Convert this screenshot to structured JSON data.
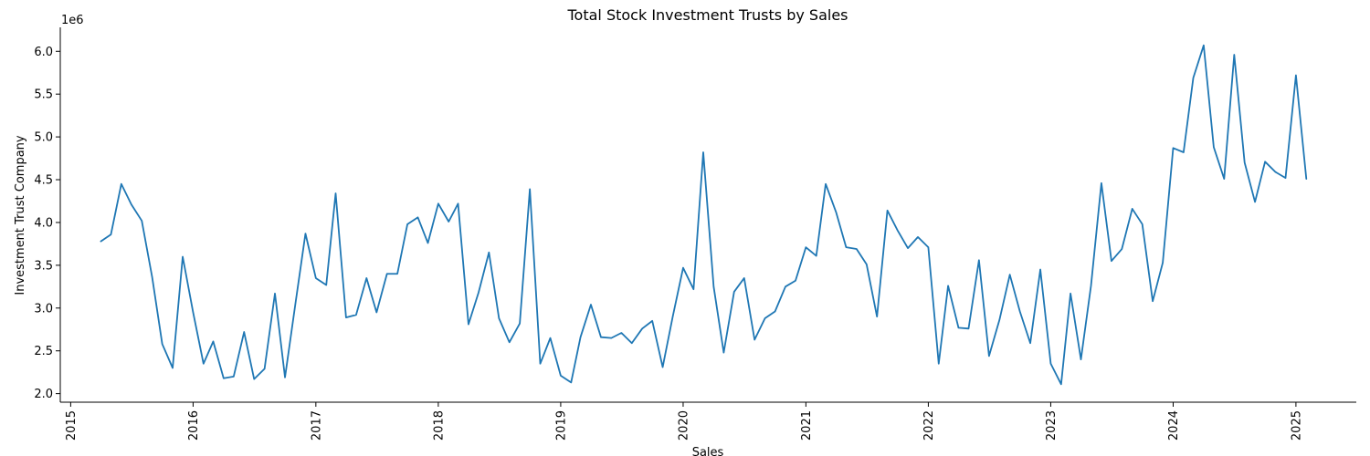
{
  "chart_data": {
    "type": "line",
    "title": "Total Stock Investment Trusts by Sales",
    "xlabel": "Sales",
    "ylabel": "Investment Trust Company",
    "y_offset_text": "1e6",
    "x_ticks": [
      "2015",
      "2016",
      "2017",
      "2018",
      "2019",
      "2020",
      "2021",
      "2022",
      "2023",
      "2024",
      "2025"
    ],
    "y_ticks": [
      "2.0",
      "2.5",
      "3.0",
      "3.5",
      "4.0",
      "4.5",
      "5.0",
      "5.5",
      "6.0"
    ],
    "xlim": [
      "2014-12-01",
      "2025-06-30"
    ],
    "ylim": [
      1.9,
      6.28
    ],
    "grid": false,
    "line_color": "#1f77b4",
    "series": [
      {
        "x": [
          "2015-04",
          "2015-05",
          "2015-06",
          "2015-07",
          "2015-08",
          "2015-09",
          "2015-10",
          "2015-11",
          "2015-12",
          "2016-01",
          "2016-02",
          "2016-03",
          "2016-04",
          "2016-05",
          "2016-06",
          "2016-07",
          "2016-08",
          "2016-09",
          "2016-10",
          "2016-11",
          "2016-12",
          "2017-01",
          "2017-02",
          "2017-03",
          "2017-04",
          "2017-05",
          "2017-06",
          "2017-07",
          "2017-08",
          "2017-09",
          "2017-10",
          "2017-11",
          "2017-12",
          "2018-01",
          "2018-02",
          "2018-03",
          "2018-04",
          "2018-05",
          "2018-06",
          "2018-07",
          "2018-08",
          "2018-09",
          "2018-10",
          "2018-11",
          "2018-12",
          "2019-01",
          "2019-02",
          "2019-03",
          "2019-04",
          "2019-05",
          "2019-06",
          "2019-07",
          "2019-08",
          "2019-09",
          "2019-10",
          "2019-11",
          "2019-12",
          "2020-01",
          "2020-02",
          "2020-03",
          "2020-04",
          "2020-05",
          "2020-06",
          "2020-07",
          "2020-08",
          "2020-09",
          "2020-10",
          "2020-11",
          "2020-12",
          "2021-01",
          "2021-02",
          "2021-03",
          "2021-04",
          "2021-05",
          "2021-06",
          "2021-07",
          "2021-08",
          "2021-09",
          "2021-10",
          "2021-11",
          "2021-12",
          "2022-01",
          "2022-02",
          "2022-03",
          "2022-04",
          "2022-05",
          "2022-06",
          "2022-07",
          "2022-08",
          "2022-09",
          "2022-10",
          "2022-11",
          "2022-12",
          "2023-01",
          "2023-02",
          "2023-03",
          "2023-04",
          "2023-05",
          "2023-06",
          "2023-07",
          "2023-08",
          "2023-09",
          "2023-10",
          "2023-11",
          "2023-12",
          "2024-01",
          "2024-02",
          "2024-03",
          "2024-04",
          "2024-05",
          "2024-06",
          "2024-07",
          "2024-08",
          "2024-09",
          "2024-10",
          "2024-11",
          "2024-12",
          "2025-01",
          "2025-02"
        ],
        "y": [
          3.78,
          3.86,
          4.45,
          4.21,
          4.02,
          3.36,
          2.58,
          2.3,
          3.6,
          2.95,
          2.35,
          2.61,
          2.18,
          2.2,
          2.72,
          2.17,
          2.29,
          3.17,
          2.19,
          3.05,
          3.87,
          3.35,
          3.27,
          4.34,
          2.89,
          2.92,
          3.35,
          2.95,
          3.4,
          3.4,
          3.98,
          4.06,
          3.76,
          4.22,
          4.01,
          4.22,
          2.81,
          3.18,
          3.65,
          2.88,
          2.6,
          2.82,
          4.39,
          2.35,
          2.65,
          2.21,
          2.13,
          2.66,
          3.04,
          2.66,
          2.65,
          2.71,
          2.59,
          2.76,
          2.85,
          2.31,
          2.9,
          3.47,
          3.22,
          4.82,
          3.25,
          2.48,
          3.19,
          3.35,
          2.63,
          2.88,
          2.96,
          3.25,
          3.32,
          3.71,
          3.61,
          4.45,
          4.12,
          3.71,
          3.69,
          3.51,
          2.9,
          4.14,
          3.91,
          3.7,
          3.83,
          3.71,
          2.35,
          3.26,
          2.77,
          2.76,
          3.56,
          2.44,
          2.86,
          3.39,
          2.96,
          2.59,
          3.45,
          2.35,
          2.11,
          3.17,
          2.4,
          3.26,
          4.46,
          3.55,
          3.69,
          4.16,
          3.98,
          3.08,
          3.53,
          4.87,
          4.82,
          5.69,
          6.07,
          4.88,
          4.51,
          5.96,
          4.7,
          4.24,
          4.71,
          4.59,
          4.52,
          5.72,
          4.51
        ]
      }
    ]
  }
}
